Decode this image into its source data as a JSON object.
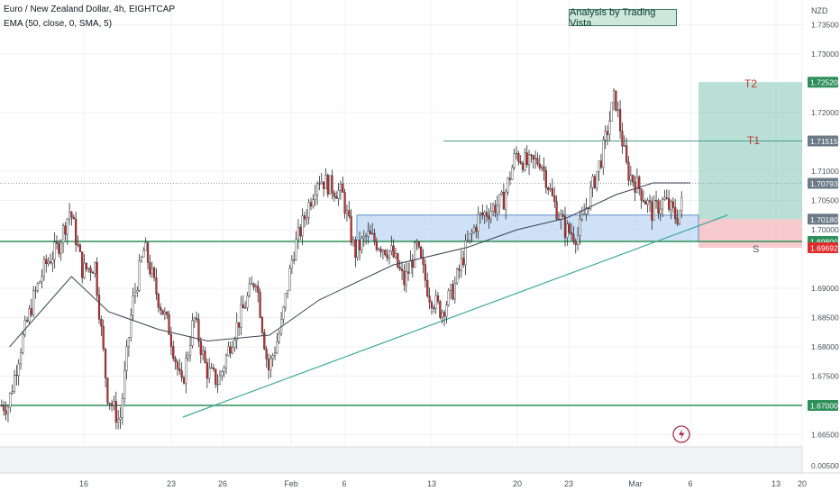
{
  "header": {
    "symbol_line": "Euro / New Zealand Dollar, 4h, EIGHTCAP",
    "indicator_line": "EMA (50, close, 0, SMA, 5)"
  },
  "badge": {
    "text": "Analysis by Trading Vista"
  },
  "price_axis": {
    "currency": "NZD",
    "ticks": [
      "1.73500",
      "1.73000",
      "1.72000",
      "1.71000",
      "1.70500",
      "1.70000",
      "1.69000",
      "1.68500",
      "1.68000",
      "1.67500",
      "1.66500"
    ],
    "indicator_value": "0.00500"
  },
  "time_axis": {
    "ticks": [
      "16",
      "23",
      "26",
      "Feb",
      "6",
      "13",
      "20",
      "23",
      "Mar",
      "6",
      "13",
      "20"
    ]
  },
  "price_labels": [
    {
      "text": "1.72520",
      "color": "#2f8f5b"
    },
    {
      "text": "1.71515",
      "color": "#6b7a86"
    },
    {
      "text": "1.70793",
      "color": "#6b7a86"
    },
    {
      "text": "1.70180",
      "color": "#6b7a86"
    },
    {
      "text": "1.69800",
      "color": "#2f8f5b"
    },
    {
      "text": "1.69692",
      "color": "#e02b2b"
    },
    {
      "text": "1.67000",
      "color": "#2f8f5b"
    }
  ],
  "annotations": {
    "target2": "T2",
    "target1": "T1",
    "stop": "S"
  },
  "chart_data": {
    "type": "candlestick",
    "symbol": "EURNZD",
    "timeframe": "4h",
    "current_price": 1.70793,
    "y_range": [
      1.6635,
      1.737
    ],
    "support_levels": [
      1.698,
      1.67
    ],
    "targets": {
      "T2": 1.7252,
      "T1": 1.71515,
      "entry": 1.7018,
      "stop": 1.69692
    },
    "support_zone": [
      1.698,
      1.7025
    ],
    "trendline": [
      {
        "date": "Jan 24",
        "price": 1.668
      },
      {
        "date": "Mar 8",
        "price": 1.7025
      }
    ],
    "price_path": [
      [
        "Jan 10",
        1.67
      ],
      [
        "Jan 11",
        1.68
      ],
      [
        "Jan 12",
        1.688
      ],
      [
        "Jan 13",
        1.694
      ],
      [
        "Jan 14",
        1.697
      ],
      [
        "Jan 15",
        1.7035
      ],
      [
        "Jan 16",
        1.693
      ],
      [
        "Jan 17",
        1.694
      ],
      [
        "Jan 18",
        1.672
      ],
      [
        "Jan 19",
        1.667
      ],
      [
        "Jan 20",
        1.687
      ],
      [
        "Jan 21",
        1.697
      ],
      [
        "Jan 22",
        1.689
      ],
      [
        "Jan 23",
        1.683
      ],
      [
        "Jan 24",
        1.673
      ],
      [
        "Jan 25",
        1.685
      ],
      [
        "Jan 26",
        1.676
      ],
      [
        "Jan 27",
        1.674
      ],
      [
        "Jan 28",
        1.681
      ],
      [
        "Jan 30",
        1.692
      ],
      [
        "Jan 31",
        1.676
      ],
      [
        "Feb 1",
        1.683
      ],
      [
        "Feb 2",
        1.696
      ],
      [
        "Feb 4",
        1.709
      ],
      [
        "Feb 6",
        1.706
      ],
      [
        "Feb 7",
        1.696
      ],
      [
        "Feb 8",
        1.699
      ],
      [
        "Feb 10",
        1.696
      ],
      [
        "Feb 11",
        1.691
      ],
      [
        "Feb 12",
        1.697
      ],
      [
        "Feb 13",
        1.689
      ],
      [
        "Feb 14",
        1.686
      ],
      [
        "Feb 15",
        1.69
      ],
      [
        "Feb 16",
        1.697
      ],
      [
        "Feb 17",
        1.702
      ],
      [
        "Feb 19",
        1.705
      ],
      [
        "Feb 20",
        1.713
      ],
      [
        "Feb 21",
        1.711
      ],
      [
        "Feb 22",
        1.712
      ],
      [
        "Feb 23",
        1.705
      ],
      [
        "Feb 24",
        1.7
      ],
      [
        "Feb 25",
        1.699
      ],
      [
        "Feb 26",
        1.706
      ],
      [
        "Feb 27",
        1.713
      ],
      [
        "Feb 28",
        1.723
      ],
      [
        "Feb 29",
        1.71
      ],
      [
        "Mar 1",
        1.707
      ],
      [
        "Mar 2",
        1.703
      ],
      [
        "Mar 3",
        1.705
      ],
      [
        "Mar 4",
        1.702
      ],
      [
        "Mar 5",
        1.7079
      ]
    ],
    "ema_path": [
      [
        "Jan 10",
        1.68
      ],
      [
        "Jan 15",
        1.692
      ],
      [
        "Jan 18",
        1.686
      ],
      [
        "Jan 22",
        1.683
      ],
      [
        "Jan 26",
        1.681
      ],
      [
        "Jan 31",
        1.682
      ],
      [
        "Feb 4",
        1.688
      ],
      [
        "Feb 10",
        1.694
      ],
      [
        "Feb 16",
        1.697
      ],
      [
        "Feb 20",
        1.7
      ],
      [
        "Feb 24",
        1.702
      ],
      [
        "Feb 28",
        1.706
      ],
      [
        "Mar 2",
        1.708
      ],
      [
        "Mar 5",
        1.708
      ]
    ]
  }
}
